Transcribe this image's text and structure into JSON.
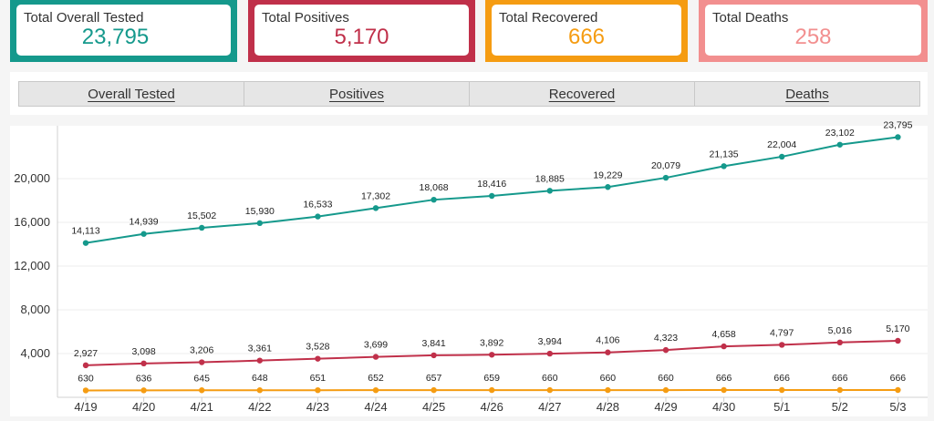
{
  "cards": [
    {
      "label": "Total Overall Tested",
      "value": "23,795"
    },
    {
      "label": "Total Positives",
      "value": "5,170"
    },
    {
      "label": "Total Recovered",
      "value": "666"
    },
    {
      "label": "Total Deaths",
      "value": "258"
    }
  ],
  "tabs": [
    "Overall Tested",
    "Positives",
    "Recovered",
    "Deaths"
  ],
  "colors": {
    "tested": "#15998c",
    "positives": "#c0304a",
    "recovered": "#f59c12",
    "deaths": "#f28f8f"
  },
  "chart_data": {
    "type": "line",
    "title": "",
    "xlabel": "",
    "ylabel": "",
    "categories": [
      "4/19",
      "4/20",
      "4/21",
      "4/22",
      "4/23",
      "4/24",
      "4/25",
      "4/26",
      "4/27",
      "4/28",
      "4/29",
      "4/30",
      "5/1",
      "5/2",
      "5/3"
    ],
    "y_ticks": [
      "4,000",
      "8,000",
      "12,000",
      "16,000",
      "20,000"
    ],
    "ylim": [
      0,
      24000
    ],
    "grid": true,
    "series": [
      {
        "key": "tested",
        "color": "#15998c",
        "values": [
          14113,
          14939,
          15502,
          15930,
          16533,
          17302,
          18068,
          18416,
          18885,
          19229,
          20079,
          21135,
          22004,
          23102,
          23795
        ],
        "labels": [
          "14,113",
          "14,939",
          "15,502",
          "15,930",
          "16,533",
          "17,302",
          "18,068",
          "18,416",
          "18,885",
          "19,229",
          "20,079",
          "21,135",
          "22,004",
          "23,102",
          "23,795"
        ]
      },
      {
        "key": "positives",
        "color": "#c0304a",
        "values": [
          2927,
          3098,
          3206,
          3361,
          3528,
          3699,
          3841,
          3892,
          3994,
          4106,
          4323,
          4658,
          4797,
          5016,
          5170
        ],
        "labels": [
          "2,927",
          "3,098",
          "3,206",
          "3,361",
          "3,528",
          "3,699",
          "3,841",
          "3,892",
          "3,994",
          "4,106",
          "4,323",
          "4,658",
          "4,797",
          "5,016",
          "5,170"
        ]
      },
      {
        "key": "recovered",
        "color": "#f59c12",
        "values": [
          630,
          636,
          645,
          648,
          651,
          652,
          657,
          659,
          660,
          660,
          660,
          666,
          666,
          666,
          666
        ],
        "labels": [
          "630",
          "636",
          "645",
          "648",
          "651",
          "652",
          "657",
          "659",
          "660",
          "660",
          "660",
          "666",
          "666",
          "666",
          "666"
        ]
      }
    ]
  }
}
